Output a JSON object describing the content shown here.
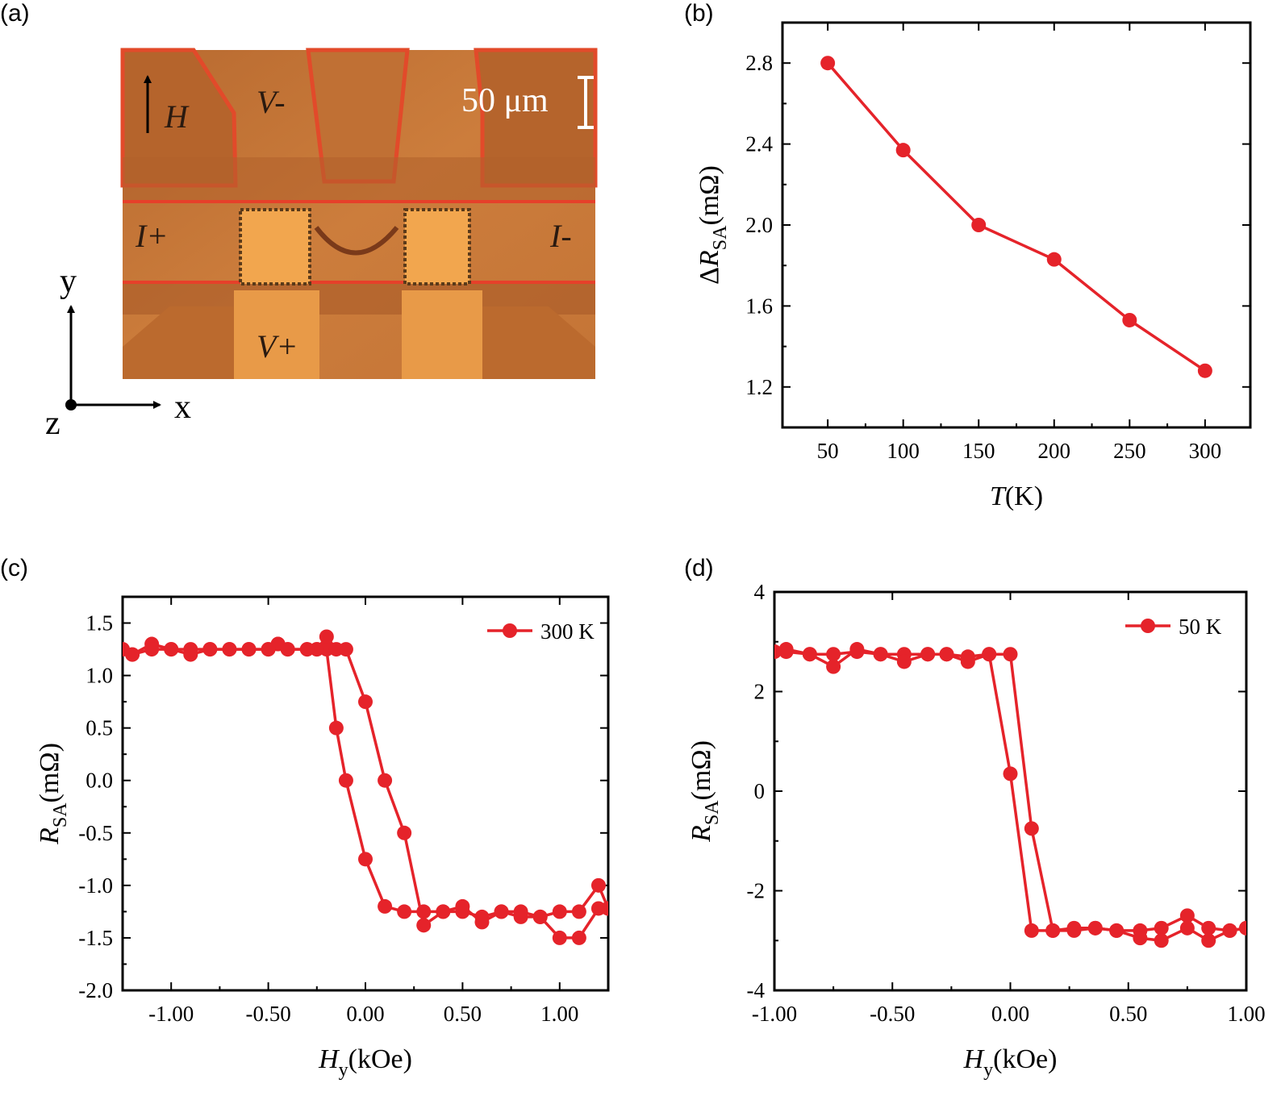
{
  "colors": {
    "series": "#e5232a",
    "axis": "#000000",
    "photo_bg": "#c8793a",
    "photo_pad": "#f2a64e"
  },
  "panel_a": {
    "label": "(a)",
    "field_arrow": "H",
    "labels": {
      "v_minus": "V-",
      "v_plus": "V+",
      "i_plus": "I+",
      "i_minus": "I-"
    },
    "scale_bar": "50 μm",
    "axes": {
      "y": "y",
      "x": "x",
      "z": "z"
    }
  },
  "chart_data": [
    {
      "id": "b",
      "type": "line",
      "panel_label": "(b)",
      "xlabel_italic": "T",
      "xlabel_rest": "(K)",
      "ylabel_prefix": "ΔR",
      "ylabel_sub": "SA",
      "ylabel_unit": "(mΩ)",
      "xlim": [
        20,
        330
      ],
      "ylim": [
        1.0,
        3.0
      ],
      "xticks": [
        50,
        100,
        150,
        200,
        250,
        300
      ],
      "xtick_labels": [
        "50",
        "100",
        "150",
        "200",
        "250",
        "300"
      ],
      "yticks": [
        1.2,
        1.6,
        2.0,
        2.4,
        2.8
      ],
      "ytick_labels": [
        "1.2",
        "1.6",
        "2.0",
        "2.4",
        "2.8"
      ],
      "x": [
        50,
        100,
        150,
        200,
        250,
        300
      ],
      "y": [
        2.8,
        2.37,
        2.0,
        1.83,
        1.53,
        1.28
      ]
    },
    {
      "id": "c",
      "type": "line",
      "panel_label": "(c)",
      "xlabel_italic": "H",
      "xlabel_sub": "y",
      "xlabel_rest": "(kOe)",
      "ylabel_italic": "R",
      "ylabel_sub": "SA",
      "ylabel_unit": "(mΩ)",
      "legend": "300 K",
      "xlim": [
        -1.25,
        1.25
      ],
      "ylim": [
        -2.0,
        1.75
      ],
      "xticks": [
        -1.0,
        -0.5,
        0.0,
        0.5,
        1.0
      ],
      "xtick_labels": [
        "-1.00",
        "-0.50",
        "0.00",
        "0.50",
        "1.00"
      ],
      "yticks": [
        -2.0,
        -1.5,
        -1.0,
        -0.5,
        0.0,
        0.5,
        1.0,
        1.5
      ],
      "ytick_labels": [
        "-2.0",
        "-1.5",
        "-1.0",
        "-0.5",
        "0.0",
        "0.5",
        "1.0",
        "1.5"
      ],
      "series": [
        {
          "x": [
            -1.25,
            -1.2,
            -1.1,
            -1.0,
            -0.9,
            -0.8,
            -0.7,
            -0.6,
            -0.5,
            -0.45,
            -0.4,
            -0.3,
            -0.25,
            -0.2,
            -0.15,
            -0.1,
            0.0,
            0.1,
            0.2,
            0.3,
            0.4,
            0.5,
            0.6,
            0.7,
            0.8,
            0.9,
            1.0,
            1.1,
            1.2,
            1.25
          ],
          "y": [
            1.25,
            1.2,
            1.3,
            1.25,
            1.2,
            1.25,
            1.25,
            1.25,
            1.25,
            1.3,
            1.25,
            1.25,
            1.25,
            1.25,
            0.5,
            0.0,
            -0.75,
            -1.2,
            -1.25,
            -1.25,
            -1.25,
            -1.25,
            -1.3,
            -1.25,
            -1.3,
            -1.3,
            -1.25,
            -1.25,
            -1.0,
            -1.22
          ]
        },
        {
          "x": [
            1.25,
            1.2,
            1.1,
            1.0,
            0.9,
            0.8,
            0.7,
            0.6,
            0.5,
            0.4,
            0.3,
            0.2,
            0.1,
            0.0,
            -0.1,
            -0.15,
            -0.2,
            -0.25,
            -0.3,
            -0.4,
            -0.45,
            -0.5,
            -0.6,
            -0.7,
            -0.8,
            -0.9,
            -1.0,
            -1.1,
            -1.2,
            -1.25
          ],
          "y": [
            -1.22,
            -1.22,
            -1.5,
            -1.5,
            -1.3,
            -1.25,
            -1.25,
            -1.35,
            -1.2,
            -1.25,
            -1.38,
            -0.5,
            0.0,
            0.75,
            1.25,
            1.25,
            1.37,
            1.25,
            1.25,
            1.25,
            1.3,
            1.25,
            1.25,
            1.25,
            1.25,
            1.25,
            1.25,
            1.25,
            1.2,
            1.25
          ]
        }
      ]
    },
    {
      "id": "d",
      "type": "line",
      "panel_label": "(d)",
      "xlabel_italic": "H",
      "xlabel_sub": "y",
      "xlabel_rest": "(kOe)",
      "ylabel_italic": "R",
      "ylabel_sub": "SA",
      "ylabel_unit": "(mΩ)",
      "legend": "50 K",
      "xlim": [
        -1.0,
        1.0
      ],
      "ylim": [
        -4.0,
        4.0
      ],
      "xticks": [
        -1.0,
        -0.5,
        0.0,
        0.5,
        1.0
      ],
      "xtick_labels": [
        "-1.00",
        "-0.50",
        "0.00",
        "0.50",
        "1.00"
      ],
      "yticks": [
        -4,
        -2,
        0,
        2,
        4
      ],
      "ytick_labels": [
        "-4",
        "-2",
        "0",
        "2",
        "4"
      ],
      "series": [
        {
          "x": [
            -1.0,
            -0.95,
            -0.85,
            -0.75,
            -0.65,
            -0.55,
            -0.45,
            -0.35,
            -0.27,
            -0.18,
            -0.09,
            0.0,
            0.09,
            0.18,
            0.27,
            0.36,
            0.45,
            0.55,
            0.64,
            0.75,
            0.84,
            0.93,
            1.0
          ],
          "y": [
            2.8,
            2.8,
            2.75,
            2.75,
            2.8,
            2.75,
            2.75,
            2.75,
            2.75,
            2.7,
            2.75,
            0.35,
            -2.8,
            -2.8,
            -2.75,
            -2.75,
            -2.8,
            -2.8,
            -2.75,
            -2.5,
            -2.75,
            -2.8,
            -2.75
          ]
        },
        {
          "x": [
            1.0,
            0.93,
            0.84,
            0.75,
            0.64,
            0.55,
            0.45,
            0.36,
            0.27,
            0.18,
            0.09,
            0.0,
            -0.09,
            -0.18,
            -0.27,
            -0.35,
            -0.45,
            -0.55,
            -0.65,
            -0.75,
            -0.85,
            -0.95,
            -1.0
          ],
          "y": [
            -2.75,
            -2.8,
            -3.0,
            -2.75,
            -3.0,
            -2.95,
            -2.8,
            -2.75,
            -2.8,
            -2.8,
            -0.75,
            2.75,
            2.75,
            2.6,
            2.75,
            2.75,
            2.6,
            2.75,
            2.85,
            2.5,
            2.75,
            2.85,
            2.8
          ]
        }
      ]
    }
  ]
}
